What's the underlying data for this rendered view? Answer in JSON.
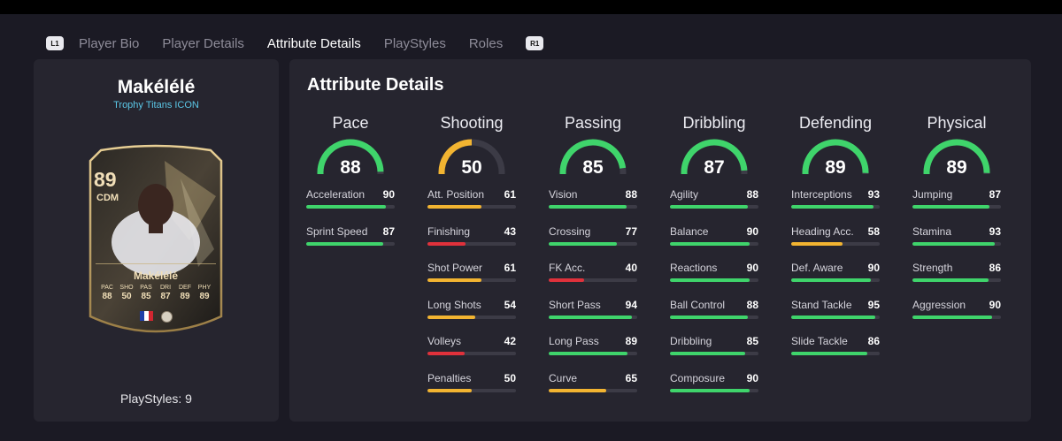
{
  "tabs": {
    "l1": "L1",
    "r1": "R1",
    "items": [
      {
        "label": "Player Bio"
      },
      {
        "label": "Player Details"
      },
      {
        "label": "Attribute Details",
        "active": true
      },
      {
        "label": "PlayStyles"
      },
      {
        "label": "Roles"
      }
    ]
  },
  "player": {
    "name": "Makélélé",
    "card_type": "Trophy Titans ICON",
    "playstyles": "PlayStyles: 9"
  },
  "card": {
    "rating": "89",
    "position": "CDM",
    "name": "Makélélé",
    "stats": [
      {
        "label": "PAC",
        "value": "88"
      },
      {
        "label": "SHO",
        "value": "50"
      },
      {
        "label": "PAS",
        "value": "85"
      },
      {
        "label": "DRI",
        "value": "87"
      },
      {
        "label": "DEF",
        "value": "89"
      },
      {
        "label": "PHY",
        "value": "89"
      }
    ],
    "nation_icon": "france-flag-icon",
    "club_icon": "club-badge-icon"
  },
  "section_title": "Attribute Details",
  "colors": {
    "high": "#3fd46b",
    "mid": "#f2b431",
    "low": "#e0313b",
    "track": "#3c3b46"
  },
  "categories": [
    {
      "name": "Pace",
      "value": 88,
      "attributes": [
        {
          "name": "Acceleration",
          "value": 90
        },
        {
          "name": "Sprint Speed",
          "value": 87
        }
      ]
    },
    {
      "name": "Shooting",
      "value": 50,
      "attributes": [
        {
          "name": "Att. Position",
          "value": 61
        },
        {
          "name": "Finishing",
          "value": 43
        },
        {
          "name": "Shot Power",
          "value": 61
        },
        {
          "name": "Long Shots",
          "value": 54
        },
        {
          "name": "Volleys",
          "value": 42
        },
        {
          "name": "Penalties",
          "value": 50
        }
      ]
    },
    {
      "name": "Passing",
      "value": 85,
      "attributes": [
        {
          "name": "Vision",
          "value": 88
        },
        {
          "name": "Crossing",
          "value": 77
        },
        {
          "name": "FK Acc.",
          "value": 40
        },
        {
          "name": "Short Pass",
          "value": 94
        },
        {
          "name": "Long Pass",
          "value": 89
        },
        {
          "name": "Curve",
          "value": 65
        }
      ]
    },
    {
      "name": "Dribbling",
      "value": 87,
      "attributes": [
        {
          "name": "Agility",
          "value": 88
        },
        {
          "name": "Balance",
          "value": 90
        },
        {
          "name": "Reactions",
          "value": 90
        },
        {
          "name": "Ball Control",
          "value": 88
        },
        {
          "name": "Dribbling",
          "value": 85
        },
        {
          "name": "Composure",
          "value": 90
        }
      ]
    },
    {
      "name": "Defending",
      "value": 89,
      "attributes": [
        {
          "name": "Interceptions",
          "value": 93
        },
        {
          "name": "Heading Acc.",
          "value": 58
        },
        {
          "name": "Def. Aware",
          "value": 90
        },
        {
          "name": "Stand Tackle",
          "value": 95
        },
        {
          "name": "Slide Tackle",
          "value": 86
        }
      ]
    },
    {
      "name": "Physical",
      "value": 89,
      "attributes": [
        {
          "name": "Jumping",
          "value": 87
        },
        {
          "name": "Stamina",
          "value": 93
        },
        {
          "name": "Strength",
          "value": 86
        },
        {
          "name": "Aggression",
          "value": 90
        }
      ]
    }
  ]
}
